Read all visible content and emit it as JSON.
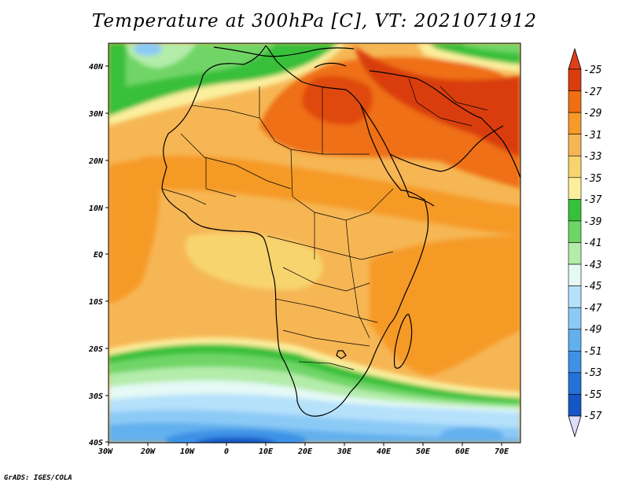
{
  "title": "Temperature at 300hPa [C], VT: 2021071912",
  "credit": "GrADS: IGES/COLA",
  "lat_labels": [
    "40N",
    "30N",
    "20N",
    "10N",
    "EQ",
    "10S",
    "20S",
    "30S",
    "40S"
  ],
  "lon_labels": [
    "30W",
    "20W",
    "10W",
    "0",
    "10E",
    "20E",
    "30E",
    "40E",
    "50E",
    "60E",
    "70E"
  ],
  "extent": {
    "lon_min": -30,
    "lon_max": 75,
    "lat_min": -40,
    "lat_max": 45
  },
  "colorbar": {
    "labels": [
      "-25",
      "-27",
      "-29",
      "-31",
      "-33",
      "-35",
      "-37",
      "-39",
      "-41",
      "-43",
      "-45",
      "-47",
      "-49",
      "-51",
      "-53",
      "-55",
      "-57"
    ],
    "colors": [
      "#d93d0c",
      "#ef6f12",
      "#f69a28",
      "#f6b654",
      "#f8d46e",
      "#fbef9e",
      "#37c03b",
      "#6fd566",
      "#b4ecaa",
      "#e5f9f5",
      "#b6e1fb",
      "#8ccaf6",
      "#62b0ee",
      "#3d92e6",
      "#2472d9",
      "#1457c4",
      "#0b2a96"
    ],
    "top_arrow_color": "#e03f1a",
    "bottom_arrow_color": "#dcdcfc"
  },
  "colors": {
    "ocean_bg": "#f6b654",
    "coast": "#000000"
  }
}
